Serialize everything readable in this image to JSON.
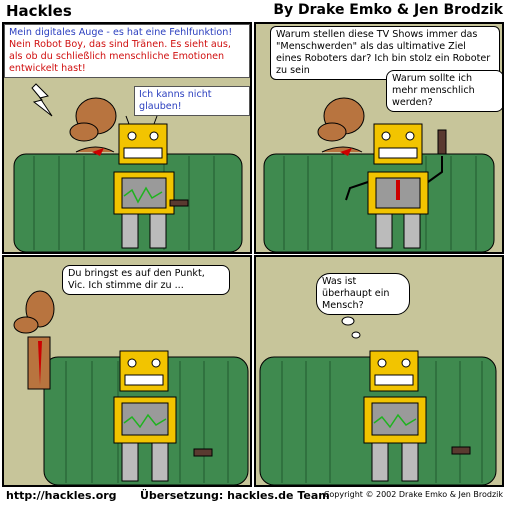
{
  "header": {
    "title": "Hackles",
    "byline": "By Drake Emko & Jen Brodzik"
  },
  "panel1": {
    "caption_line1": "Mein digitales Auge - es hat eine Fehlfunktion!",
    "caption_line2": "Nein Robot Boy, das sind Tränen. Es sieht aus, als ob du schließlich menschliche Emotionen entwickelt hast!",
    "caption_line3": "Ich kanns nicht glauben!"
  },
  "panel2": {
    "bubble1": "Warum stellen diese TV Shows immer das \"Menschwerden\" als das ultimative Ziel eines Roboters dar? Ich bin stolz ein Roboter zu sein",
    "bubble2": "Warum sollte ich mehr menschlich werden?"
  },
  "panel3": {
    "bubble": "Du bringst es auf den Punkt, Vic. Ich stimme dir zu ..."
  },
  "panel4": {
    "thought": "Was ist überhaupt ein Mensch?"
  },
  "footer": {
    "url": "http://hackles.org",
    "translation": "Übersetzung: hackles.de Team",
    "copyright": "Copyright © 2002 Drake Emko & Jen Brodzik"
  },
  "colors": {
    "wall": "#c7c59a",
    "couch": "#3f8a4f",
    "robot": "#f2c400",
    "dog": "#b8743f"
  }
}
